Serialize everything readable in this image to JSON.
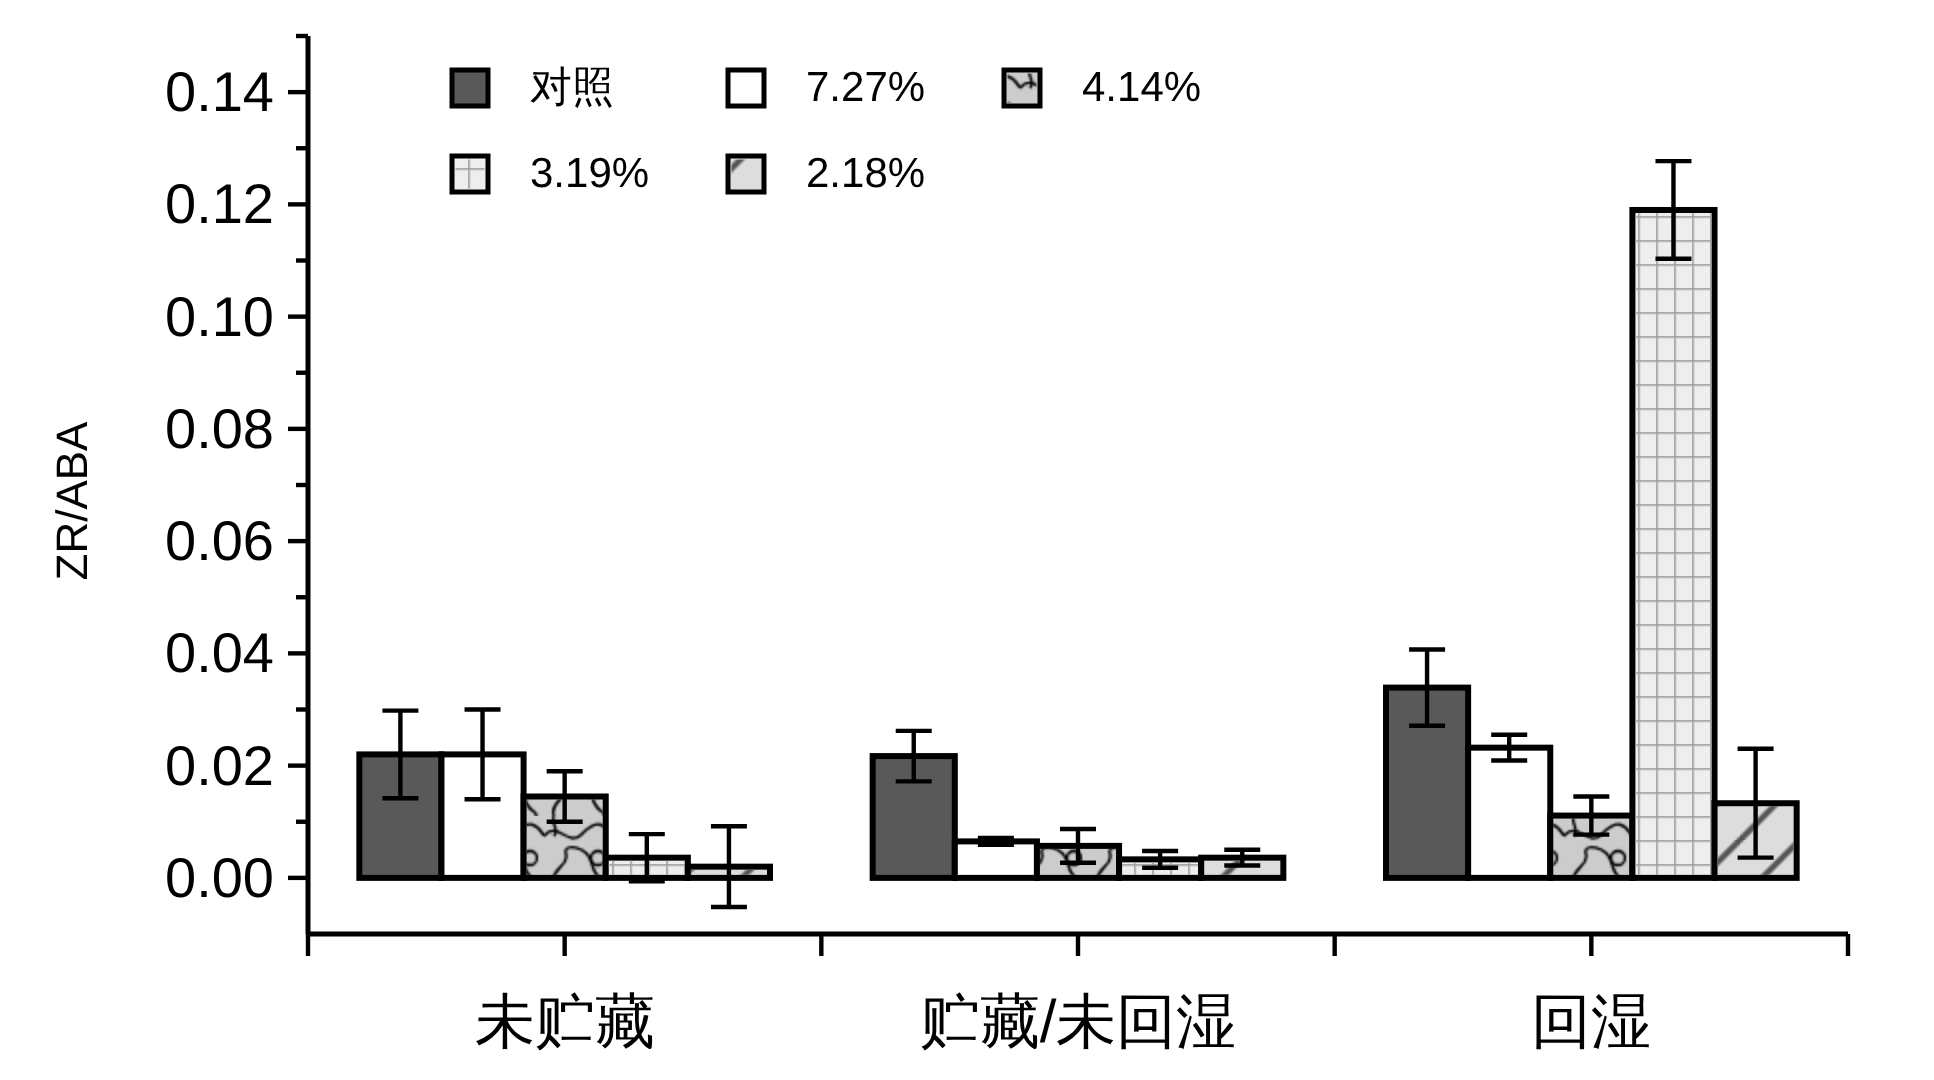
{
  "chart_data": {
    "type": "bar",
    "ylabel": "ZR/ABA",
    "categories": [
      "未贮藏",
      "贮藏/未回湿",
      "回湿"
    ],
    "ylim": [
      -0.01,
      0.15
    ],
    "yticks": [
      {
        "value": 0,
        "label": "0.00"
      },
      {
        "value": 0.01,
        "label": null
      },
      0.02,
      {
        "value": 0.03,
        "label": null
      },
      0.04,
      {
        "value": 0.05,
        "label": null
      },
      0.06,
      {
        "value": 0.07,
        "label": null
      },
      0.08,
      {
        "value": 0.09,
        "label": null
      },
      {
        "value": 0.1,
        "label": "0.10"
      },
      {
        "value": 0.11,
        "label": null
      },
      0.12,
      {
        "value": 0.13,
        "label": null
      },
      0.14,
      {
        "value": 0.15,
        "label": null
      }
    ],
    "legend": "top left",
    "series": [
      {
        "name": "对照",
        "color": "#595959",
        "values": [
          0.022,
          0.0217,
          0.0339
        ],
        "errors": [
          0.0078,
          0.0045,
          0.0068
        ]
      },
      {
        "name": "7.27%",
        "color": "#ffffff",
        "values": [
          0.022,
          0.0065,
          0.0232
        ],
        "errors": [
          0.008,
          0.0006,
          0.0023
        ]
      },
      {
        "name": "4.14%",
        "color": "#cccccc",
        "values": [
          0.0145,
          0.0057,
          0.0111
        ],
        "errors": [
          0.0045,
          0.003,
          0.0034
        ]
      },
      {
        "name": "3.19%",
        "color": "#eeeeee",
        "values": [
          0.0036,
          0.0033,
          0.119
        ],
        "errors": [
          0.0042,
          0.0015,
          0.0087
        ]
      },
      {
        "name": "2.18%",
        "color": "#dddddd",
        "values": [
          0.002,
          0.0036,
          0.0133
        ],
        "errors": [
          0.0072,
          0.0014,
          0.0097
        ]
      }
    ]
  }
}
